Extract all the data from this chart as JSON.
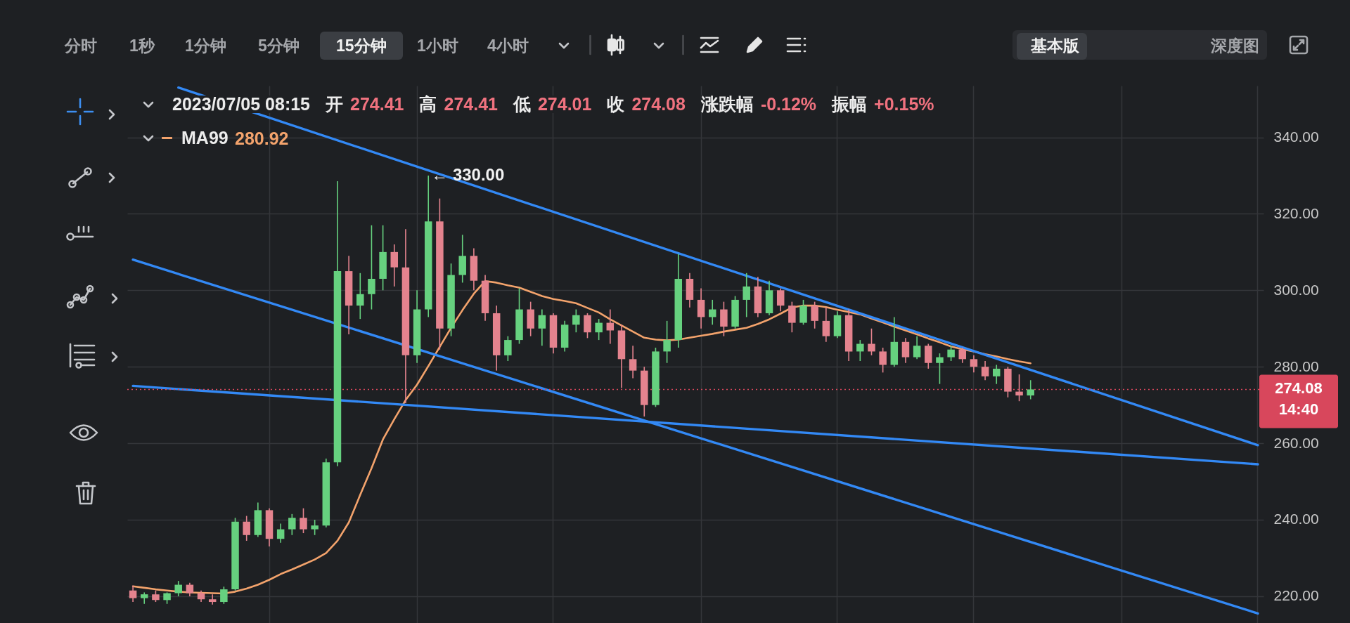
{
  "chart_data": {
    "type": "candlestick",
    "categories": [
      null,
      null,
      null,
      null,
      null,
      null,
      null,
      null,
      null,
      null,
      null,
      null,
      null,
      null,
      null,
      null,
      null,
      null,
      null,
      null,
      null,
      null,
      null,
      null,
      null,
      null,
      null,
      null,
      null,
      null,
      null,
      null,
      null,
      null,
      null,
      null,
      null,
      null,
      null,
      null,
      null,
      null,
      null,
      null,
      null,
      null,
      null,
      null,
      null,
      null,
      null,
      null,
      null,
      null,
      null,
      null,
      null,
      null,
      null,
      null,
      null,
      null,
      null,
      null,
      null,
      null,
      null,
      null,
      null,
      null,
      null,
      null,
      null,
      null,
      null,
      null,
      null,
      null,
      null,
      null,
      null,
      null,
      null,
      null,
      null,
      null,
      null,
      null,
      null,
      null,
      null,
      null,
      null,
      null,
      null,
      null,
      null,
      null,
      null,
      null
    ],
    "ohlc": [
      [
        221.5,
        222.8,
        218.5,
        219.5
      ],
      [
        219.5,
        221,
        218,
        220.5
      ],
      [
        220.5,
        221.5,
        218.5,
        219
      ],
      [
        219,
        221,
        218,
        220.8
      ],
      [
        220.8,
        224,
        220,
        223
      ],
      [
        223,
        223.5,
        220,
        220.8
      ],
      [
        220.8,
        221.5,
        218.5,
        219.2
      ],
      [
        219.2,
        220.5,
        217.8,
        218.5
      ],
      [
        218.5,
        222.5,
        218,
        221.8
      ],
      [
        221.8,
        240.5,
        221.5,
        239.5
      ],
      [
        239.5,
        241,
        234.5,
        236
      ],
      [
        236,
        244.5,
        235.5,
        242.5
      ],
      [
        242.5,
        243,
        233,
        235
      ],
      [
        235,
        239,
        234,
        237.5
      ],
      [
        237.5,
        241.5,
        236,
        240.5
      ],
      [
        240.5,
        243,
        236.5,
        237.5
      ],
      [
        237.5,
        240,
        236,
        238.5
      ],
      [
        238.5,
        256,
        238,
        255
      ],
      [
        255,
        328.5,
        254,
        305
      ],
      [
        305,
        309,
        288.5,
        296
      ],
      [
        296,
        304.5,
        292.5,
        299
      ],
      [
        299,
        317,
        295,
        303
      ],
      [
        303,
        317,
        300,
        310
      ],
      [
        310,
        312,
        301,
        306
      ],
      [
        306,
        316,
        270.5,
        283
      ],
      [
        283,
        300,
        281,
        295
      ],
      [
        295,
        330,
        293,
        318
      ],
      [
        318,
        324,
        284.5,
        290
      ],
      [
        290,
        307,
        288,
        304
      ],
      [
        304,
        314.5,
        302,
        309
      ],
      [
        309,
        311,
        300,
        302.5
      ],
      [
        302.5,
        304,
        292,
        294
      ],
      [
        294,
        296,
        279,
        283
      ],
      [
        283,
        288,
        281.5,
        287
      ],
      [
        287,
        300.5,
        286,
        295
      ],
      [
        295,
        297,
        288,
        290
      ],
      [
        290,
        295,
        285.5,
        293.5
      ],
      [
        293.5,
        294,
        283.5,
        285
      ],
      [
        285,
        292,
        284,
        291
      ],
      [
        291,
        295,
        289,
        293.5
      ],
      [
        293.5,
        294,
        287.5,
        289
      ],
      [
        289,
        292.5,
        287,
        291.5
      ],
      [
        291.5,
        295,
        286,
        289.5
      ],
      [
        289.5,
        291,
        274.5,
        282
      ],
      [
        282,
        285.5,
        277,
        279
      ],
      [
        279,
        280,
        267,
        270
      ],
      [
        270,
        285,
        269.5,
        284
      ],
      [
        284,
        292,
        281,
        287
      ],
      [
        287,
        309.5,
        285,
        303
      ],
      [
        303,
        304.5,
        295.5,
        297.5
      ],
      [
        297.5,
        300.5,
        290,
        293
      ],
      [
        293,
        297.5,
        291,
        295
      ],
      [
        295,
        297,
        288,
        290.5
      ],
      [
        290.5,
        298.5,
        290,
        297.5
      ],
      [
        297.5,
        304.5,
        293,
        301
      ],
      [
        301,
        303.5,
        293,
        294
      ],
      [
        294,
        302.5,
        293.5,
        300
      ],
      [
        300,
        300.5,
        294.5,
        296
      ],
      [
        296,
        297,
        289,
        291.5
      ],
      [
        291.5,
        297.5,
        291,
        296
      ],
      [
        296,
        297,
        290,
        292
      ],
      [
        292,
        295.5,
        286.5,
        288
      ],
      [
        288,
        294.5,
        287.5,
        293.5
      ],
      [
        293.5,
        295,
        281.5,
        284
      ],
      [
        284,
        287,
        281.5,
        286
      ],
      [
        286,
        290,
        283,
        284
      ],
      [
        284,
        285,
        278.5,
        280.5
      ],
      [
        280.5,
        293,
        280,
        286.5
      ],
      [
        286.5,
        287.5,
        281,
        282.5
      ],
      [
        282.5,
        288,
        282,
        285.5
      ],
      [
        285.5,
        286,
        279.5,
        281
      ],
      [
        281,
        283.5,
        275.5,
        282.5
      ],
      [
        282.5,
        285.5,
        281.5,
        284.5
      ],
      [
        284.5,
        285,
        281,
        282
      ],
      [
        282,
        283,
        278.5,
        280
      ],
      [
        280,
        281.5,
        276.5,
        277.5
      ],
      [
        277.5,
        280.5,
        275.5,
        279.5
      ],
      [
        279.5,
        280,
        272,
        273.5
      ],
      [
        273.5,
        278,
        271,
        272.5
      ],
      [
        272.5,
        276.5,
        271.5,
        274.08
      ],
      null,
      null,
      null,
      null,
      null,
      null,
      null,
      null,
      null,
      null,
      null,
      null,
      null,
      null,
      null,
      null,
      null,
      null,
      null,
      null
    ],
    "colors": [
      "#e4838e",
      "#66d17f",
      "#e4838e",
      "#66d17f",
      "#66d17f",
      "#e4838e",
      "#e4838e",
      "#e4838e",
      "#66d17f",
      "#66d17f",
      "#e4838e",
      "#66d17f",
      "#e4838e",
      "#66d17f",
      "#66d17f",
      "#e4838e",
      "#66d17f",
      "#66d17f",
      "#66d17f",
      "#e4838e",
      "#66d17f",
      "#66d17f",
      "#66d17f",
      "#e4838e",
      "#e4838e",
      "#66d17f",
      "#66d17f",
      "#e4838e",
      "#66d17f",
      "#66d17f",
      "#e4838e",
      "#e4838e",
      "#e4838e",
      "#66d17f",
      "#66d17f",
      "#e4838e",
      "#66d17f",
      "#e4838e",
      "#66d17f",
      "#66d17f",
      "#e4838e",
      "#66d17f",
      "#e4838e",
      "#e4838e",
      "#e4838e",
      "#e4838e",
      "#66d17f",
      "#66d17f",
      "#66d17f",
      "#e4838e",
      "#e4838e",
      "#66d17f",
      "#e4838e",
      "#66d17f",
      "#66d17f",
      "#e4838e",
      "#66d17f",
      "#e4838e",
      "#e4838e",
      "#66d17f",
      "#e4838e",
      "#e4838e",
      "#66d17f",
      "#e4838e",
      "#66d17f",
      "#e4838e",
      "#e4838e",
      "#66d17f",
      "#e4838e",
      "#66d17f",
      "#e4838e",
      "#66d17f",
      "#66d17f",
      "#e4838e",
      "#e4838e",
      "#e4838e",
      "#66d17f",
      "#e4838e",
      "#e4838e",
      "#66d17f",
      null,
      null,
      null,
      null,
      null,
      null,
      null,
      null,
      null,
      null,
      null,
      null,
      null,
      null,
      null,
      null,
      null,
      null,
      null,
      null
    ],
    "series": [
      {
        "name": "MA99",
        "type": "line",
        "color": "#f3a36c",
        "values": [
          222.6,
          222.2,
          221.8,
          221.5,
          221.2,
          221.0,
          220.9,
          220.8,
          220.7,
          221.2,
          222.0,
          223.0,
          224.3,
          225.8,
          227.0,
          228.3,
          229.6,
          231.3,
          234.5,
          239.3,
          246.5,
          253.5,
          261.0,
          266.3,
          271.3,
          275.3,
          280.2,
          285.2,
          290.2,
          294.8,
          299.1,
          302.4,
          302.0,
          301.3,
          300.7,
          299.6,
          298.5,
          297.7,
          297.2,
          296.6,
          295.4,
          294.2,
          292.4,
          290.8,
          289.2,
          287.6,
          287.1,
          286.9,
          287.1,
          287.6,
          288.1,
          288.6,
          289.2,
          289.7,
          290.2,
          291.2,
          292.4,
          293.9,
          295.5,
          296.0,
          296.0,
          295.6,
          294.9,
          294.3,
          293.7,
          292.6,
          291.6,
          290.5,
          289.5,
          288.5,
          287.4,
          286.4,
          285.3,
          284.6,
          284.0,
          283.3,
          282.7,
          282.0,
          281.4,
          280.9,
          null,
          null,
          null,
          null,
          null,
          null,
          null,
          null,
          null,
          null,
          null,
          null,
          null,
          null,
          null,
          null,
          null,
          null,
          null,
          null
        ]
      },
      {
        "type": "line",
        "color": "#3389f5",
        "values": [
          null,
          null,
          null,
          null,
          353,
          null,
          null,
          null,
          null,
          null,
          null,
          null,
          null,
          null,
          null,
          null,
          null,
          null,
          null,
          null,
          null,
          null,
          null,
          null,
          null,
          null,
          null,
          null,
          null,
          null,
          null,
          null,
          null,
          null,
          null,
          null,
          null,
          null,
          null,
          null,
          null,
          null,
          null,
          null,
          null,
          null,
          null,
          null,
          null,
          null,
          null,
          null,
          null,
          null,
          null,
          null,
          null,
          null,
          null,
          null,
          null,
          null,
          null,
          null,
          null,
          null,
          null,
          null,
          null,
          null,
          null,
          null,
          null,
          null,
          null,
          null,
          null,
          null,
          null,
          null,
          null,
          null,
          null,
          null,
          null,
          null,
          null,
          null,
          null,
          null,
          null,
          null,
          null,
          null,
          null,
          null,
          null,
          null,
          null,
          259.5
        ]
      },
      {
        "type": "line",
        "color": "#3389f5",
        "values": [
          308,
          null,
          null,
          null,
          null,
          null,
          null,
          null,
          null,
          null,
          null,
          null,
          null,
          null,
          null,
          null,
          null,
          null,
          null,
          null,
          null,
          null,
          null,
          null,
          null,
          null,
          null,
          null,
          null,
          null,
          null,
          null,
          null,
          null,
          null,
          null,
          null,
          null,
          null,
          null,
          null,
          null,
          null,
          null,
          null,
          null,
          null,
          null,
          null,
          null,
          null,
          null,
          null,
          null,
          null,
          null,
          null,
          null,
          null,
          null,
          null,
          null,
          null,
          null,
          null,
          null,
          null,
          null,
          null,
          null,
          null,
          null,
          null,
          null,
          null,
          null,
          null,
          null,
          null,
          null,
          null,
          null,
          null,
          null,
          null,
          null,
          null,
          null,
          null,
          null,
          null,
          null,
          null,
          null,
          null,
          null,
          null,
          null,
          null,
          215.5
        ]
      },
      {
        "type": "line",
        "color": "#3389f5",
        "values": [
          275,
          null,
          null,
          null,
          null,
          null,
          null,
          null,
          null,
          null,
          null,
          null,
          null,
          null,
          null,
          null,
          null,
          null,
          null,
          null,
          null,
          null,
          null,
          null,
          null,
          null,
          null,
          null,
          null,
          null,
          null,
          null,
          null,
          null,
          null,
          null,
          null,
          null,
          null,
          null,
          null,
          null,
          null,
          null,
          null,
          null,
          null,
          null,
          null,
          null,
          null,
          null,
          null,
          null,
          null,
          null,
          null,
          null,
          null,
          null,
          null,
          null,
          null,
          null,
          null,
          null,
          null,
          null,
          null,
          null,
          null,
          null,
          null,
          null,
          null,
          null,
          null,
          null,
          null,
          null,
          null,
          null,
          null,
          null,
          null,
          null,
          null,
          null,
          null,
          null,
          null,
          null,
          null,
          null,
          null,
          null,
          null,
          null,
          null,
          254.5
        ]
      }
    ],
    "ylim": [
      213,
      353.5
    ],
    "yticks": [
      {
        "value": 220,
        "label": "220.00"
      },
      {
        "value": 240,
        "label": "240.00"
      },
      {
        "value": 260,
        "label": "260.00"
      },
      {
        "value": 280,
        "label": "280.00"
      },
      {
        "value": 300,
        "label": "300.00"
      },
      {
        "value": 320,
        "label": "320.00"
      },
      {
        "value": 340,
        "label": "340.00"
      }
    ],
    "ref_lines": [
      {
        "axis": "y",
        "value": 274.08,
        "label": "274.08 14:40",
        "color": "#d8475c",
        "line_style": "dotted"
      }
    ],
    "annotations": [
      "分时",
      "1秒",
      "1分钟",
      "5分钟",
      "15分钟",
      "1小时",
      "4小时",
      "基本版",
      "深度图",
      "2023/07/05 08:15",
      "开",
      "274.41",
      "高",
      "274.41",
      "低",
      "274.01",
      "收",
      "274.08",
      "涨跌幅",
      "-0.12%",
      "振幅",
      "+0.15%",
      "280.92",
      "← 330.00"
    ],
    "grid": true,
    "legend": "top left",
    "tick_labels": "y"
  }
}
